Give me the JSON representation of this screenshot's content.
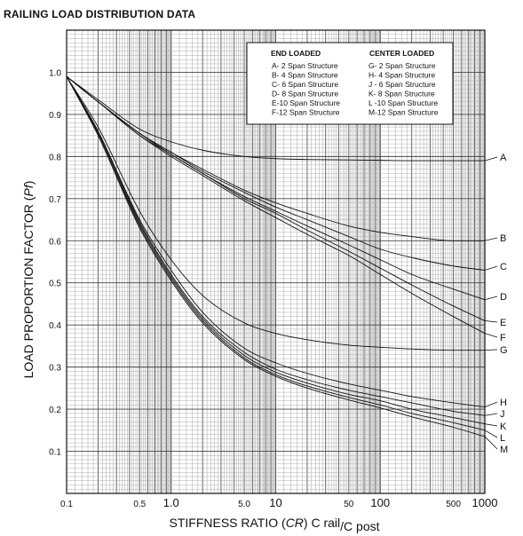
{
  "chart_data": {
    "type": "line",
    "title": "RAILING LOAD DISTRIBUTION DATA",
    "ylabel_main": "LOAD PROPORTION FACTOR (",
    "ylabel_sym": "Pf",
    "ylabel_close": ")",
    "xlabel_main": "STIFFNESS RATIO (",
    "xlabel_sym": "CR",
    "xlabel_mid": ") C rail",
    "xlabel_sub": "/C post",
    "x_scale": "log",
    "xlim": [
      0.1,
      1000
    ],
    "ylim": [
      0,
      1.1
    ],
    "grid": true,
    "x_ticks": [
      "0.1",
      "0.5",
      "1.0",
      "5.0",
      "10",
      "50",
      "100",
      "500",
      "1000"
    ],
    "y_ticks": [
      "0.1",
      "0.2",
      "0.3",
      "0.4",
      "0.5",
      "0.6",
      "0.7",
      "0.8",
      "0.9",
      "1.0"
    ],
    "legend": {
      "placement": "top-right",
      "end_heading": "END LOADED",
      "center_heading": "CENTER LOADED",
      "end_items": [
        "A- 2 Span Structure",
        "B- 4 Span Structure",
        "C- 6 Span Structure",
        "D- 8 Span Structure",
        "E-10 Span Structure",
        "F-12 Span Structure"
      ],
      "center_items": [
        "G- 2 Span Structure",
        "H- 4 Span Structure",
        "J - 6 Span Structure",
        "K- 8 Span Structure",
        "L -10 Span Structure",
        "M-12 Span Structure"
      ]
    },
    "x": [
      0.1,
      0.2,
      0.5,
      1,
      2,
      5,
      10,
      20,
      50,
      100,
      200,
      500,
      1000
    ],
    "series": [
      {
        "name": "A",
        "values": [
          0.99,
          0.935,
          0.865,
          0.835,
          0.815,
          0.8,
          0.795,
          0.793,
          0.792,
          0.791,
          0.79,
          0.79,
          0.79
        ]
      },
      {
        "name": "B",
        "values": [
          0.99,
          0.93,
          0.855,
          0.81,
          0.77,
          0.72,
          0.69,
          0.665,
          0.635,
          0.62,
          0.61,
          0.6,
          0.6
        ]
      },
      {
        "name": "C",
        "values": [
          0.99,
          0.93,
          0.855,
          0.81,
          0.765,
          0.715,
          0.68,
          0.65,
          0.61,
          0.58,
          0.56,
          0.54,
          0.53
        ]
      },
      {
        "name": "D",
        "values": [
          0.99,
          0.93,
          0.855,
          0.805,
          0.76,
          0.705,
          0.67,
          0.635,
          0.59,
          0.555,
          0.52,
          0.485,
          0.46
        ]
      },
      {
        "name": "E",
        "values": [
          0.99,
          0.93,
          0.85,
          0.805,
          0.76,
          0.7,
          0.665,
          0.625,
          0.575,
          0.535,
          0.495,
          0.445,
          0.41
        ]
      },
      {
        "name": "F",
        "values": [
          0.99,
          0.93,
          0.85,
          0.8,
          0.755,
          0.695,
          0.655,
          0.615,
          0.565,
          0.52,
          0.475,
          0.42,
          0.38
        ]
      },
      {
        "name": "G",
        "values": [
          0.99,
          0.87,
          0.67,
          0.555,
          0.47,
          0.405,
          0.38,
          0.365,
          0.352,
          0.347,
          0.343,
          0.34,
          0.34
        ]
      },
      {
        "name": "H",
        "values": [
          0.99,
          0.86,
          0.65,
          0.53,
          0.43,
          0.345,
          0.31,
          0.285,
          0.26,
          0.245,
          0.23,
          0.215,
          0.205
        ]
      },
      {
        "name": "J",
        "values": [
          0.99,
          0.86,
          0.645,
          0.52,
          0.42,
          0.335,
          0.295,
          0.27,
          0.245,
          0.23,
          0.215,
          0.195,
          0.185
        ]
      },
      {
        "name": "K",
        "values": [
          0.99,
          0.855,
          0.64,
          0.515,
          0.415,
          0.328,
          0.288,
          0.262,
          0.235,
          0.22,
          0.2,
          0.18,
          0.165
        ]
      },
      {
        "name": "L",
        "values": [
          0.99,
          0.855,
          0.635,
          0.51,
          0.41,
          0.322,
          0.282,
          0.255,
          0.228,
          0.21,
          0.19,
          0.168,
          0.15
        ]
      },
      {
        "name": "M",
        "values": [
          0.99,
          0.85,
          0.63,
          0.505,
          0.405,
          0.318,
          0.278,
          0.25,
          0.222,
          0.203,
          0.182,
          0.157,
          0.135
        ]
      }
    ]
  }
}
